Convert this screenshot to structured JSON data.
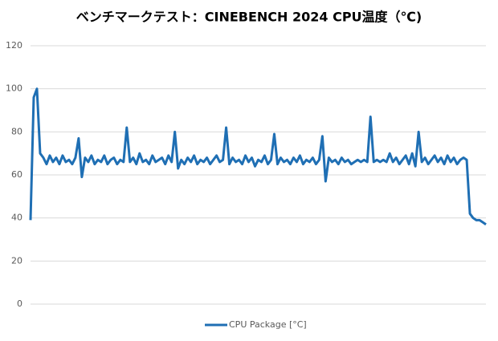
{
  "chart_data": {
    "type": "line",
    "title": "ベンチマークテスト：CINEBENCH 2024 CPU温度（℃)",
    "series": [
      {
        "name": "CPU Package [°C]",
        "color": "#1f6fb4",
        "values": [
          39,
          96,
          100,
          70,
          68,
          65,
          69,
          66,
          68,
          65,
          69,
          66,
          67,
          65,
          68,
          77,
          59,
          68,
          66,
          69,
          65,
          67,
          66,
          69,
          65,
          67,
          68,
          65,
          67,
          66,
          82,
          66,
          68,
          65,
          70,
          66,
          67,
          65,
          69,
          66,
          67,
          68,
          65,
          69,
          66,
          80,
          63,
          67,
          65,
          68,
          66,
          69,
          65,
          67,
          66,
          68,
          65,
          67,
          69,
          66,
          67,
          82,
          65,
          68,
          66,
          67,
          65,
          69,
          66,
          68,
          64,
          67,
          66,
          69,
          65,
          67,
          79,
          65,
          68,
          66,
          67,
          65,
          68,
          66,
          69,
          65,
          67,
          66,
          68,
          65,
          67,
          78,
          57,
          68,
          66,
          67,
          65,
          68,
          66,
          67,
          65,
          66,
          67,
          66,
          67,
          66,
          87,
          66,
          67,
          66,
          67,
          66,
          70,
          66,
          68,
          65,
          67,
          69,
          65,
          70,
          64,
          80,
          66,
          68,
          65,
          67,
          69,
          66,
          68,
          65,
          69,
          66,
          68,
          65,
          67,
          68,
          67,
          42,
          40,
          39,
          39,
          38,
          37
        ]
      }
    ],
    "ylim": [
      0,
      120
    ],
    "yticks": [
      0,
      20,
      40,
      60,
      80,
      100,
      120
    ],
    "grid": true,
    "legend": "bottom"
  }
}
